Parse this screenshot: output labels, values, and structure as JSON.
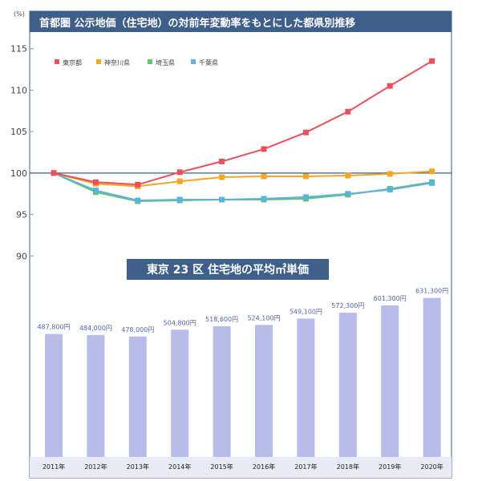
{
  "line_title": "首都圏 公示地価（住宅地）の対前年変動率をもとにした都県別推移",
  "bar_title": "東京 23 区 住宅地の平均㎡単価",
  "y_unit": "(%)",
  "chart_data": [
    {
      "type": "line",
      "title": "首都圏 公示地価（住宅地）の対前年変動率をもとにした都県別推移",
      "ylabel": "(%)",
      "ylim": [
        88,
        117
      ],
      "yticks": [
        90,
        95,
        100,
        105,
        110,
        115
      ],
      "x": [
        "2011年",
        "2012年",
        "2013年",
        "2014年",
        "2015年",
        "2016年",
        "2017年",
        "2018年",
        "2019年",
        "2020年"
      ],
      "grid": false,
      "legend": "top-left",
      "series": [
        {
          "name": "東京都",
          "color": "#e8505b",
          "values": [
            100,
            98.9,
            98.6,
            100.1,
            101.4,
            102.9,
            104.9,
            107.4,
            110.5,
            113.5
          ]
        },
        {
          "name": "神奈川県",
          "color": "#f5a623",
          "values": [
            100,
            98.7,
            98.4,
            99.0,
            99.5,
            99.6,
            99.6,
            99.7,
            99.9,
            100.2
          ]
        },
        {
          "name": "埼玉県",
          "color": "#6cbf6c",
          "values": [
            100,
            97.7,
            96.6,
            96.7,
            96.8,
            96.8,
            96.9,
            97.4,
            98.1,
            98.9
          ]
        },
        {
          "name": "千葉県",
          "color": "#5bb4dc",
          "values": [
            100,
            97.9,
            96.7,
            96.8,
            96.8,
            96.9,
            97.1,
            97.5,
            98.0,
            98.8
          ]
        }
      ]
    },
    {
      "type": "bar",
      "title": "東京 23 区 住宅地の平均㎡単価",
      "categories": [
        "2011年",
        "2012年",
        "2013年",
        "2014年",
        "2015年",
        "2016年",
        "2017年",
        "2018年",
        "2019年",
        "2020年"
      ],
      "values": [
        487800,
        484000,
        478000,
        504800,
        518600,
        524100,
        549100,
        572300,
        601300,
        631300
      ],
      "labels": [
        "487,800円",
        "484,000円",
        "478,000円",
        "504,800円",
        "518,600円",
        "524,100円",
        "549,100円",
        "572,300円",
        "601,300円",
        "631,300円"
      ],
      "ylim": [
        0,
        700000
      ]
    }
  ]
}
